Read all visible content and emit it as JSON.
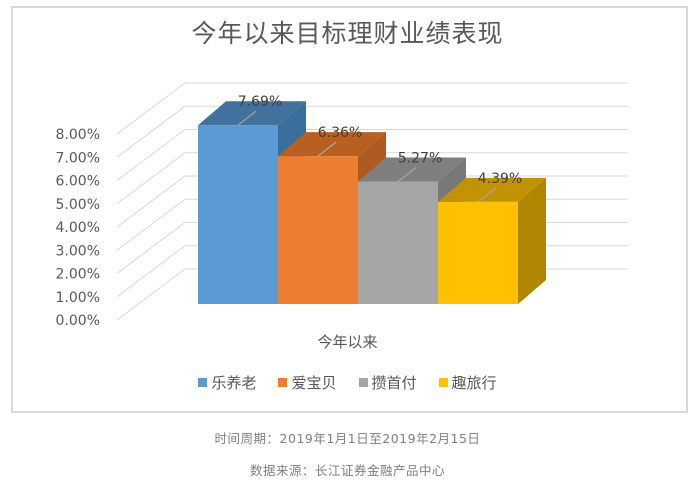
{
  "chart": {
    "title": "今年以来目标理财业绩表现",
    "x_category": "今年以来",
    "y_ticks": [
      "0.00%",
      "1.00%",
      "2.00%",
      "3.00%",
      "4.00%",
      "5.00%",
      "6.00%",
      "7.00%",
      "8.00%"
    ],
    "bars": [
      {
        "name": "乐养老",
        "value": 7.69,
        "label": "7.69%",
        "color": "#5b9bd5",
        "top_color": "#41719c",
        "side_color": "#3c6e9c"
      },
      {
        "name": "爱宝贝",
        "value": 6.36,
        "label": "6.36%",
        "color": "#ed7d31",
        "top_color": "#b8601f",
        "side_color": "#ae5a21"
      },
      {
        "name": "攒首付",
        "value": 5.27,
        "label": "5.27%",
        "color": "#a5a5a5",
        "top_color": "#7f7f7f",
        "side_color": "#787878"
      },
      {
        "name": "趣旅行",
        "value": 4.39,
        "label": "4.39%",
        "color": "#ffc000",
        "top_color": "#c29200",
        "side_color": "#b08600"
      }
    ],
    "legend": [
      {
        "label": "乐养老",
        "color": "#5b9bd5"
      },
      {
        "label": "爱宝贝",
        "color": "#ed7d31"
      },
      {
        "label": "攒首付",
        "color": "#a5a5a5"
      },
      {
        "label": "趣旅行",
        "color": "#ffc000"
      }
    ]
  },
  "footer": {
    "period": "时间周期：2019年1月1日至2019年2月15日",
    "source": "数据来源：长江证券金融产品中心"
  },
  "chart_data": {
    "type": "bar",
    "title": "今年以来目标理财业绩表现",
    "categories": [
      "今年以来"
    ],
    "series": [
      {
        "name": "乐养老",
        "values": [
          7.69
        ]
      },
      {
        "name": "爱宝贝",
        "values": [
          6.36
        ]
      },
      {
        "name": "攒首付",
        "values": [
          5.27
        ]
      },
      {
        "name": "趣旅行",
        "values": [
          4.39
        ]
      }
    ],
    "data_labels": [
      "7.69%",
      "6.36%",
      "5.27%",
      "4.39%"
    ],
    "xlabel": "",
    "ylabel": "",
    "ylim": [
      0,
      8
    ],
    "y_tick_labels": [
      "0.00%",
      "1.00%",
      "2.00%",
      "3.00%",
      "4.00%",
      "5.00%",
      "6.00%",
      "7.00%",
      "8.00%"
    ],
    "grid": true,
    "style": "3d-clustered-column",
    "legend_position": "bottom"
  }
}
